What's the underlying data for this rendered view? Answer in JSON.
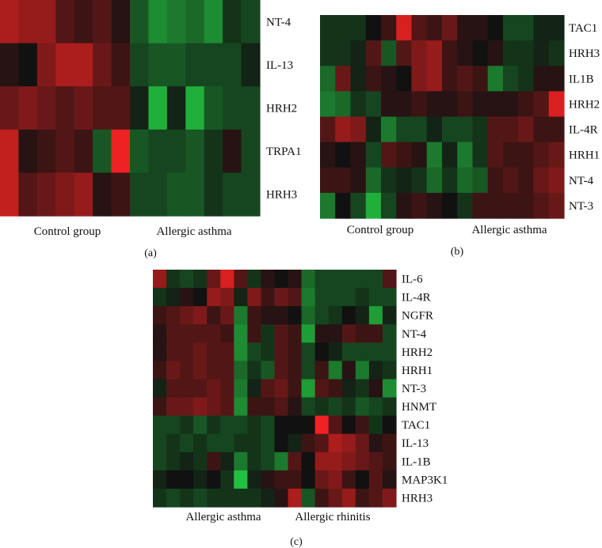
{
  "chart_data": [
    {
      "type": "heatmap",
      "panel_label": "(a)",
      "rows": [
        "NT-4",
        "IL-13",
        "HRH2",
        "TRPA1",
        "HRH3"
      ],
      "groups": [
        "Control group",
        "Allergic asthma"
      ],
      "columns_per_group": [
        7,
        7
      ],
      "color_scale": {
        "low": "#22c040",
        "mid": "#111111",
        "high": "#ee2222"
      },
      "values": [
        [
          0.7,
          0.6,
          0.6,
          0.3,
          0.2,
          0.3,
          0.1,
          -0.4,
          -0.7,
          -0.6,
          -0.5,
          -0.7,
          -0.2,
          -0.3
        ],
        [
          0.1,
          0.0,
          0.5,
          0.7,
          0.7,
          0.4,
          0.2,
          -0.3,
          -0.4,
          -0.4,
          -0.3,
          -0.3,
          -0.3,
          -0.1
        ],
        [
          0.4,
          0.5,
          0.4,
          0.3,
          0.4,
          0.3,
          0.3,
          -0.1,
          -0.9,
          -0.1,
          -0.9,
          -0.4,
          -0.3,
          -0.3
        ],
        [
          0.8,
          0.1,
          0.2,
          0.3,
          0.2,
          -0.4,
          1.0,
          -0.4,
          -0.3,
          -0.3,
          -0.4,
          -0.2,
          0.1,
          -0.3
        ],
        [
          0.8,
          0.3,
          0.4,
          0.5,
          0.6,
          0.1,
          0.2,
          -0.3,
          -0.3,
          -0.4,
          -0.4,
          -0.2,
          -0.3,
          -0.3
        ]
      ]
    },
    {
      "type": "heatmap",
      "panel_label": "(b)",
      "rows": [
        "TAC1",
        "HRH3",
        "IL1B",
        "HRH2",
        "IL-4R",
        "HRH1",
        "NT-4",
        "NT-3"
      ],
      "groups": [
        "Control group",
        "Allergic asthma"
      ],
      "columns_per_group": [
        8,
        8
      ],
      "color_scale": {
        "low": "#22c040",
        "mid": "#111111",
        "high": "#ee2222"
      },
      "values": [
        [
          -0.2,
          -0.2,
          -0.2,
          0.0,
          0.2,
          0.9,
          0.3,
          0.2,
          0.4,
          0.1,
          0.1,
          0.0,
          -0.3,
          -0.3,
          -0.1,
          -0.1
        ],
        [
          -0.2,
          -0.2,
          -0.1,
          0.3,
          -0.4,
          0.3,
          0.5,
          0.6,
          0.2,
          0.1,
          0.0,
          0.1,
          -0.2,
          -0.2,
          -0.1,
          -0.2
        ],
        [
          -0.5,
          0.4,
          -0.1,
          0.2,
          0.1,
          0.0,
          0.5,
          0.6,
          0.2,
          0.3,
          0.2,
          -0.6,
          -0.3,
          -0.2,
          0.1,
          0.1
        ],
        [
          -0.6,
          -0.5,
          -0.2,
          -0.3,
          0.1,
          0.1,
          0.2,
          0.1,
          0.1,
          0.2,
          0.1,
          0.1,
          0.1,
          0.2,
          0.3,
          0.9
        ],
        [
          0.3,
          0.6,
          0.5,
          -0.1,
          -0.6,
          -0.3,
          -0.3,
          -0.1,
          -0.3,
          -0.3,
          -0.2,
          0.3,
          0.3,
          0.4,
          0.2,
          0.2
        ],
        [
          0.1,
          0.0,
          0.1,
          -0.3,
          0.3,
          0.2,
          0.1,
          -0.6,
          -0.1,
          -0.6,
          -0.2,
          0.3,
          0.2,
          0.2,
          0.3,
          0.4
        ],
        [
          0.2,
          0.2,
          0.1,
          -0.5,
          -0.2,
          -0.1,
          -0.2,
          -0.5,
          -0.2,
          -0.5,
          -0.4,
          0.2,
          0.3,
          0.2,
          0.4,
          0.5
        ],
        [
          -0.6,
          0.0,
          -0.3,
          -0.9,
          -0.3,
          0.1,
          0.2,
          0.1,
          0.0,
          -0.2,
          0.2,
          0.2,
          0.2,
          0.2,
          0.3,
          0.4
        ]
      ]
    },
    {
      "type": "heatmap",
      "panel_label": "(c)",
      "rows": [
        "IL-6",
        "IL-4R",
        "NGFR",
        "NT-4",
        "HRH2",
        "HRH1",
        "NT-3",
        "HNMT",
        "TAC1",
        "IL-13",
        "IL-1B",
        "MAP3K1",
        "HRH3"
      ],
      "groups": [
        "Allergic asthma",
        "Allergic rhinitis"
      ],
      "columns_per_group": [
        9,
        9
      ],
      "color_scale": {
        "low": "#22c040",
        "mid": "#111111",
        "high": "#ee2222"
      },
      "values": [
        [
          0.6,
          -0.2,
          -0.3,
          -0.2,
          0.4,
          0.9,
          0.3,
          -0.2,
          0.1,
          0.0,
          0.1,
          -0.5,
          -0.3,
          -0.3,
          -0.3,
          -0.3,
          -0.3,
          0.3
        ],
        [
          -0.2,
          -0.1,
          0.1,
          0.0,
          0.6,
          0.5,
          -0.1,
          0.5,
          0.2,
          0.4,
          0.3,
          -0.6,
          -0.3,
          -0.3,
          -0.3,
          -0.2,
          -0.3,
          -0.3
        ],
        [
          0.2,
          0.3,
          0.4,
          0.5,
          0.2,
          0.4,
          -0.6,
          0.2,
          0.1,
          0.1,
          0.0,
          -0.5,
          -0.3,
          -0.2,
          0.0,
          -0.1,
          -0.8,
          -0.1
        ],
        [
          0.1,
          0.3,
          0.3,
          0.3,
          0.3,
          0.2,
          -0.7,
          0.2,
          -0.2,
          0.3,
          0.2,
          -0.8,
          0.1,
          0.1,
          0.3,
          0.2,
          0.2,
          -0.3
        ],
        [
          0.1,
          0.3,
          0.3,
          0.4,
          0.3,
          0.3,
          -0.7,
          -0.3,
          -0.2,
          0.3,
          0.2,
          -0.3,
          0.0,
          -0.1,
          -0.3,
          -0.3,
          -0.3,
          -0.3
        ],
        [
          0.2,
          0.4,
          0.3,
          0.4,
          0.3,
          0.3,
          -0.5,
          -0.2,
          -0.4,
          0.3,
          0.2,
          -0.3,
          0.2,
          -0.6,
          0.1,
          -0.6,
          -0.1,
          -0.2
        ],
        [
          -0.1,
          0.3,
          0.3,
          0.3,
          0.4,
          0.3,
          -0.6,
          -0.1,
          0.3,
          0.4,
          0.2,
          -0.8,
          0.3,
          0.2,
          -0.1,
          -0.2,
          0.1,
          -0.7
        ],
        [
          0.2,
          0.4,
          0.4,
          0.5,
          0.4,
          0.3,
          -0.7,
          0.2,
          0.2,
          0.3,
          0.1,
          -0.3,
          -0.2,
          -0.3,
          -0.2,
          -0.4,
          -0.3,
          -0.2
        ],
        [
          -0.3,
          -0.3,
          -0.2,
          -0.4,
          -0.2,
          -0.3,
          -0.3,
          -0.2,
          -0.3,
          0.0,
          0.0,
          0.0,
          1.0,
          0.3,
          0.0,
          0.2,
          -0.2,
          0.0
        ],
        [
          -0.3,
          -0.2,
          -0.3,
          -0.2,
          -0.3,
          -0.3,
          -0.2,
          -0.2,
          -0.3,
          0.0,
          -0.1,
          0.2,
          0.3,
          0.7,
          0.6,
          0.4,
          0.1,
          0.2
        ],
        [
          -0.3,
          -0.2,
          -0.1,
          -0.2,
          0.2,
          -0.1,
          -0.6,
          -0.2,
          -0.3,
          -0.6,
          0.3,
          0.0,
          0.6,
          0.6,
          0.5,
          0.4,
          0.3,
          0.2
        ],
        [
          -0.1,
          0.0,
          0.0,
          -0.1,
          0.0,
          -0.2,
          -1.0,
          -0.1,
          0.1,
          0.2,
          0.2,
          0.0,
          0.4,
          0.5,
          0.2,
          0.0,
          0.3,
          0.1
        ],
        [
          -0.2,
          -0.3,
          -0.2,
          -0.3,
          -0.2,
          -0.2,
          -0.2,
          -0.2,
          -0.1,
          0.1,
          0.7,
          -0.4,
          0.2,
          0.4,
          0.6,
          0.2,
          0.3,
          0.5
        ]
      ]
    }
  ]
}
